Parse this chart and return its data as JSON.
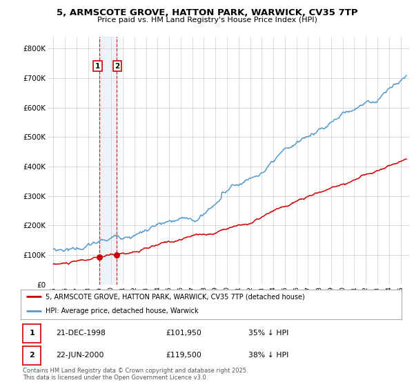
{
  "title": "5, ARMSCOTE GROVE, HATTON PARK, WARWICK, CV35 7TP",
  "subtitle": "Price paid vs. HM Land Registry's House Price Index (HPI)",
  "ylabel_ticks": [
    "£0",
    "£100K",
    "£200K",
    "£300K",
    "£400K",
    "£500K",
    "£600K",
    "£700K",
    "£800K"
  ],
  "ytick_values": [
    0,
    100000,
    200000,
    300000,
    400000,
    500000,
    600000,
    700000,
    800000
  ],
  "ylim": [
    0,
    840000
  ],
  "xlim_start": 1994.5,
  "xlim_end": 2025.8,
  "xtick_years": [
    1995,
    1996,
    1997,
    1998,
    1999,
    2000,
    2001,
    2002,
    2003,
    2004,
    2005,
    2006,
    2007,
    2008,
    2009,
    2010,
    2011,
    2012,
    2013,
    2014,
    2015,
    2016,
    2017,
    2018,
    2019,
    2020,
    2021,
    2022,
    2023,
    2024,
    2025
  ],
  "red_line_label": "5, ARMSCOTE GROVE, HATTON PARK, WARWICK, CV35 7TP (detached house)",
  "blue_line_label": "HPI: Average price, detached house, Warwick",
  "transaction1_date": "21-DEC-1998",
  "transaction1_price": "£101,950",
  "transaction1_hpi": "35% ↓ HPI",
  "transaction1_year": 1998.97,
  "transaction1_value": 101950,
  "transaction2_date": "22-JUN-2000",
  "transaction2_price": "£119,500",
  "transaction2_hpi": "38% ↓ HPI",
  "transaction2_year": 2000.47,
  "transaction2_value": 119500,
  "vline1_year": 1998.97,
  "vline2_year": 2000.47,
  "red_color": "#cc0000",
  "blue_color": "#5599cc",
  "vline_color": "#cc0000",
  "highlight_color": "#cce0f0",
  "footer": "Contains HM Land Registry data © Crown copyright and database right 2025.\nThis data is licensed under the Open Government Licence v3.0.",
  "background_color": "#ffffff",
  "grid_color": "#cccccc",
  "label1_box_color": "#cc0000",
  "label2_box_color": "#cc0000"
}
